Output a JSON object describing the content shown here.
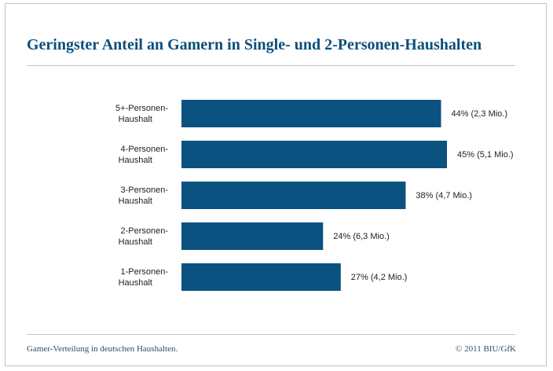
{
  "header": {
    "title": "Geringster Anteil an Gamern in Single- und 2-Personen-Haushalten"
  },
  "footer": {
    "caption": "Gamer-Verteilung in deutschen Haushalten.",
    "copyright": "© 2011 BIU/GfK"
  },
  "colors": {
    "bar": "#0b5281",
    "title": "#0b4f7d",
    "rule": "#b5c6d6"
  },
  "chart_data": {
    "type": "bar",
    "orientation": "horizontal",
    "categories": [
      [
        "5+-Personen-",
        "Haushalt"
      ],
      [
        "4-Personen-",
        "Haushalt"
      ],
      [
        "3-Personen-",
        "Haushalt"
      ],
      [
        "2-Personen-",
        "Haushalt"
      ],
      [
        "1-Personen-",
        "Haushalt"
      ]
    ],
    "values": [
      44,
      45,
      38,
      24,
      27
    ],
    "value_labels": [
      "44% (2,3 Mio.)",
      "45% (5,1 Mio.)",
      "38% (4,7 Mio.)",
      "24% (6,3 Mio.)",
      "27% (4,2 Mio.)"
    ],
    "xlim": [
      0,
      45
    ],
    "grid": false,
    "legend": "none"
  }
}
